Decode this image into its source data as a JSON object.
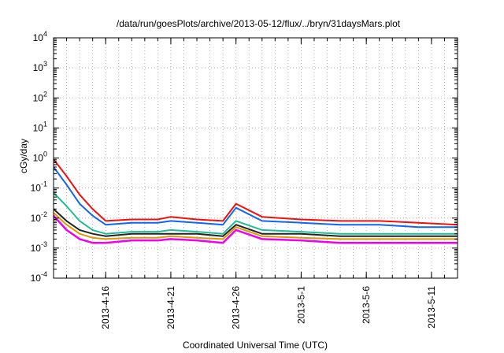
{
  "chart_data": {
    "type": "line",
    "title": "/data/run/goesPlots/archive/2013-05-12/flux/../bryn/31daysMars.plot",
    "xlabel": "Coordinated Universal Time (UTC)",
    "ylabel": "cGy/day",
    "yscale": "log",
    "ylim": [
      0.0001,
      10000
    ],
    "xlim": [
      "2013-04-12",
      "2013-05-13"
    ],
    "grid": true,
    "legend": "none",
    "y_ticks": [
      {
        "value": 0.0001,
        "base": "10",
        "exp": "-4"
      },
      {
        "value": 0.001,
        "base": "10",
        "exp": "-3"
      },
      {
        "value": 0.01,
        "base": "10",
        "exp": "-2"
      },
      {
        "value": 0.1,
        "base": "10",
        "exp": "-1"
      },
      {
        "value": 1,
        "base": "10",
        "exp": "0"
      },
      {
        "value": 10,
        "base": "10",
        "exp": "1"
      },
      {
        "value": 100,
        "base": "10",
        "exp": "2"
      },
      {
        "value": 1000,
        "base": "10",
        "exp": "3"
      },
      {
        "value": 10000,
        "base": "10",
        "exp": "4"
      }
    ],
    "x_ticks": [
      {
        "date": "2013-04-16",
        "label": "2013-4-16"
      },
      {
        "date": "2013-04-21",
        "label": "2013-4-21"
      },
      {
        "date": "2013-04-26",
        "label": "2013-4-26"
      },
      {
        "date": "2013-05-01",
        "label": "2013-5-1"
      },
      {
        "date": "2013-05-06",
        "label": "2013-5-6"
      },
      {
        "date": "2013-05-11",
        "label": "2013-5-11"
      }
    ],
    "series": [
      {
        "color": "#ee1111",
        "x": [
          "2013-04-12",
          "2013-04-13",
          "2013-04-14",
          "2013-04-15",
          "2013-04-16",
          "2013-04-18",
          "2013-04-20",
          "2013-04-21",
          "2013-04-23",
          "2013-04-25",
          "2013-04-26",
          "2013-04-28",
          "2013-05-01",
          "2013-05-04",
          "2013-05-07",
          "2013-05-10",
          "2013-05-13"
        ],
        "y": [
          0.9,
          0.25,
          0.06,
          0.02,
          0.008,
          0.009,
          0.009,
          0.011,
          0.009,
          0.008,
          0.03,
          0.011,
          0.009,
          0.008,
          0.008,
          0.007,
          0.006
        ]
      },
      {
        "color": "#1166ee",
        "x": [
          "2013-04-12",
          "2013-04-13",
          "2013-04-14",
          "2013-04-15",
          "2013-04-16",
          "2013-04-18",
          "2013-04-20",
          "2013-04-21",
          "2013-04-23",
          "2013-04-25",
          "2013-04-26",
          "2013-04-28",
          "2013-05-01",
          "2013-05-04",
          "2013-05-07",
          "2013-05-10",
          "2013-05-13"
        ],
        "y": [
          0.5,
          0.13,
          0.03,
          0.012,
          0.006,
          0.007,
          0.007,
          0.008,
          0.007,
          0.006,
          0.022,
          0.008,
          0.007,
          0.006,
          0.006,
          0.005,
          0.005
        ]
      },
      {
        "color": "#22bb99",
        "x": [
          "2013-04-12",
          "2013-04-13",
          "2013-04-14",
          "2013-04-15",
          "2013-04-16",
          "2013-04-18",
          "2013-04-20",
          "2013-04-21",
          "2013-04-23",
          "2013-04-25",
          "2013-04-26",
          "2013-04-28",
          "2013-05-01",
          "2013-05-04",
          "2013-05-07",
          "2013-05-10",
          "2013-05-13"
        ],
        "y": [
          0.07,
          0.025,
          0.008,
          0.004,
          0.003,
          0.0035,
          0.0035,
          0.004,
          0.0035,
          0.003,
          0.008,
          0.004,
          0.0035,
          0.003,
          0.003,
          0.003,
          0.003
        ]
      },
      {
        "color": "#222222",
        "x": [
          "2013-04-12",
          "2013-04-13",
          "2013-04-14",
          "2013-04-15",
          "2013-04-16",
          "2013-04-18",
          "2013-04-20",
          "2013-04-21",
          "2013-04-23",
          "2013-04-25",
          "2013-04-26",
          "2013-04-28",
          "2013-05-01",
          "2013-05-04",
          "2013-05-07",
          "2013-05-10",
          "2013-05-13"
        ],
        "y": [
          0.02,
          0.008,
          0.004,
          0.003,
          0.0025,
          0.003,
          0.003,
          0.003,
          0.003,
          0.0025,
          0.006,
          0.003,
          0.003,
          0.0025,
          0.0025,
          0.0025,
          0.0025
        ]
      },
      {
        "color": "#dd9900",
        "x": [
          "2013-04-12",
          "2013-04-13",
          "2013-04-14",
          "2013-04-15",
          "2013-04-16",
          "2013-04-18",
          "2013-04-20",
          "2013-04-21",
          "2013-04-23",
          "2013-04-25",
          "2013-04-26",
          "2013-04-28",
          "2013-05-01",
          "2013-05-04",
          "2013-05-07",
          "2013-05-10",
          "2013-05-13"
        ],
        "y": [
          0.015,
          0.006,
          0.003,
          0.0022,
          0.002,
          0.0022,
          0.0022,
          0.0025,
          0.0022,
          0.002,
          0.005,
          0.0025,
          0.0022,
          0.002,
          0.002,
          0.002,
          0.002
        ]
      },
      {
        "color": "#ee00ee",
        "x": [
          "2013-04-12",
          "2013-04-13",
          "2013-04-14",
          "2013-04-15",
          "2013-04-16",
          "2013-04-18",
          "2013-04-20",
          "2013-04-21",
          "2013-04-23",
          "2013-04-25",
          "2013-04-26",
          "2013-04-28",
          "2013-05-01",
          "2013-05-04",
          "2013-05-07",
          "2013-05-10",
          "2013-05-13"
        ],
        "y": [
          0.012,
          0.004,
          0.002,
          0.0015,
          0.0015,
          0.0018,
          0.0018,
          0.002,
          0.0018,
          0.0015,
          0.004,
          0.002,
          0.0018,
          0.0015,
          0.0015,
          0.0015,
          0.0015
        ]
      }
    ]
  }
}
